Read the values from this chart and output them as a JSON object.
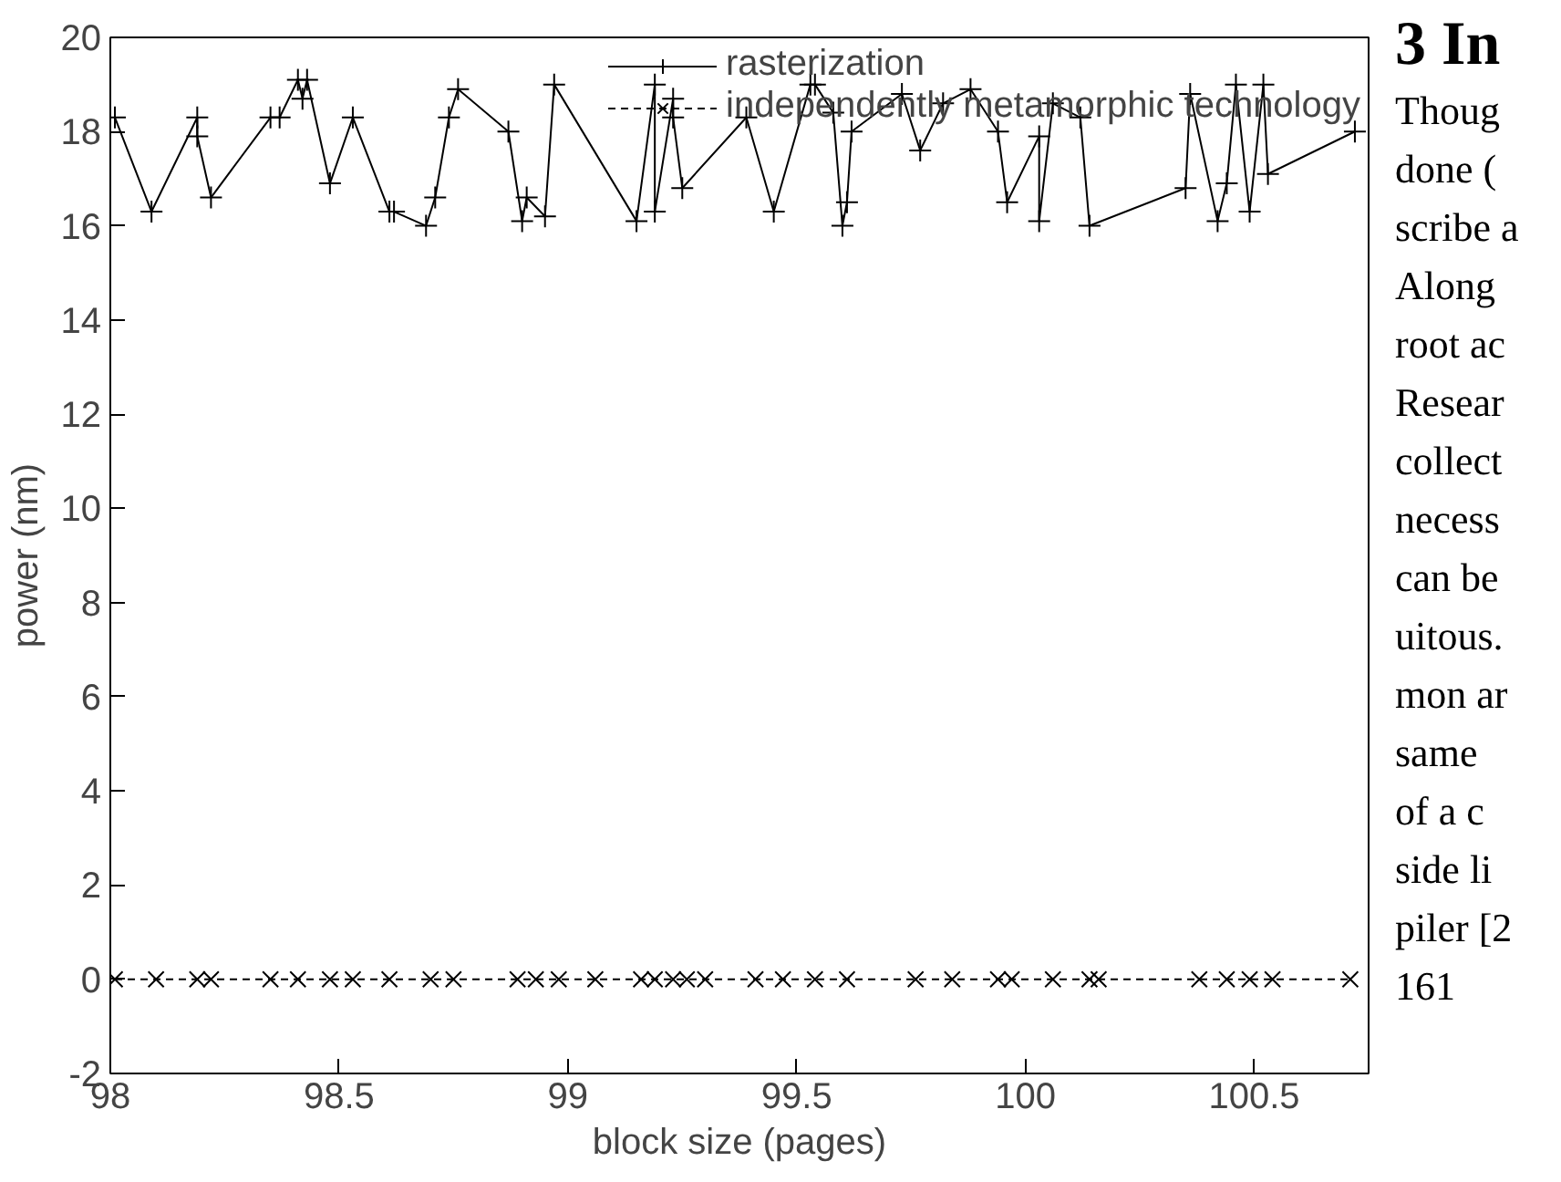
{
  "chart_data": {
    "type": "line",
    "xlabel": "block size (pages)",
    "ylabel": "power (nm)",
    "xlim": [
      98,
      100.75
    ],
    "ylim": [
      -2,
      20
    ],
    "xticks": [
      98,
      98.5,
      99,
      99.5,
      100,
      100.5
    ],
    "yticks": [
      -2,
      0,
      2,
      4,
      6,
      8,
      10,
      12,
      14,
      16,
      18,
      20
    ],
    "grid": false,
    "legend": "top right",
    "series": [
      {
        "name": "rasterization",
        "color": "#000000",
        "marker": "cross",
        "line_style": "solid",
        "x": [
          98.01,
          98.09,
          98.19,
          98.19,
          98.22,
          98.35,
          98.37,
          98.41,
          98.42,
          98.43,
          98.48,
          98.53,
          98.61,
          98.62,
          98.69,
          98.71,
          98.74,
          98.76,
          98.87,
          98.9,
          98.91,
          98.95,
          98.97,
          99.15,
          99.19,
          99.19,
          99.23,
          99.23,
          99.25,
          99.39,
          99.45,
          99.53,
          99.54,
          99.58,
          99.6,
          99.61,
          99.62,
          99.73,
          99.77,
          99.82,
          99.88,
          99.94,
          99.96,
          100.03,
          100.03,
          100.06,
          100.12,
          100.14,
          100.35,
          100.36,
          100.42,
          100.44,
          100.46,
          100.49,
          100.52,
          100.53,
          100.72
        ],
        "values": [
          18.3,
          16.3,
          18.3,
          17.9,
          16.6,
          18.3,
          18.3,
          19.1,
          18.7,
          19.1,
          16.9,
          18.3,
          16.3,
          16.3,
          16.0,
          16.6,
          18.3,
          18.9,
          18.0,
          16.1,
          16.6,
          16.2,
          19.0,
          16.1,
          19.0,
          16.3,
          18.7,
          18.3,
          16.8,
          18.3,
          16.3,
          19.0,
          19.0,
          18.4,
          16.0,
          16.5,
          18.0,
          18.8,
          17.6,
          18.6,
          18.9,
          18.0,
          16.5,
          17.9,
          16.1,
          18.6,
          18.3,
          16.0,
          16.8,
          18.8,
          16.1,
          16.9,
          19.0,
          16.3,
          19.0,
          17.1,
          18.0
        ]
      },
      {
        "name": "independently metamorphic technology",
        "color": "#000000",
        "marker": "x",
        "line_style": "dashed",
        "x": [
          98.01,
          98.1,
          98.19,
          98.22,
          98.35,
          98.41,
          98.48,
          98.53,
          98.61,
          98.7,
          98.75,
          98.89,
          98.93,
          98.98,
          99.06,
          99.16,
          99.19,
          99.23,
          99.26,
          99.3,
          99.41,
          99.47,
          99.54,
          99.61,
          99.76,
          99.84,
          99.94,
          99.97,
          100.06,
          100.14,
          100.16,
          100.38,
          100.44,
          100.49,
          100.54,
          100.71
        ],
        "values": [
          0,
          0,
          0,
          0,
          0,
          0,
          0,
          0,
          0,
          0,
          0,
          0,
          0,
          0,
          0,
          0,
          0,
          0,
          0,
          0,
          0,
          0,
          0,
          0,
          0,
          0,
          0,
          0,
          0,
          0,
          0,
          0,
          0,
          0,
          0,
          0
        ]
      }
    ],
    "annotations": [
      "3 In",
      "Thoug",
      "done (",
      "scribe a",
      "Along",
      "root ac",
      "Resear",
      "collect",
      "necess",
      "can be",
      "uitous.",
      "mon ar",
      "same",
      "of a c",
      "side li",
      "piler [2",
      "161"
    ]
  }
}
